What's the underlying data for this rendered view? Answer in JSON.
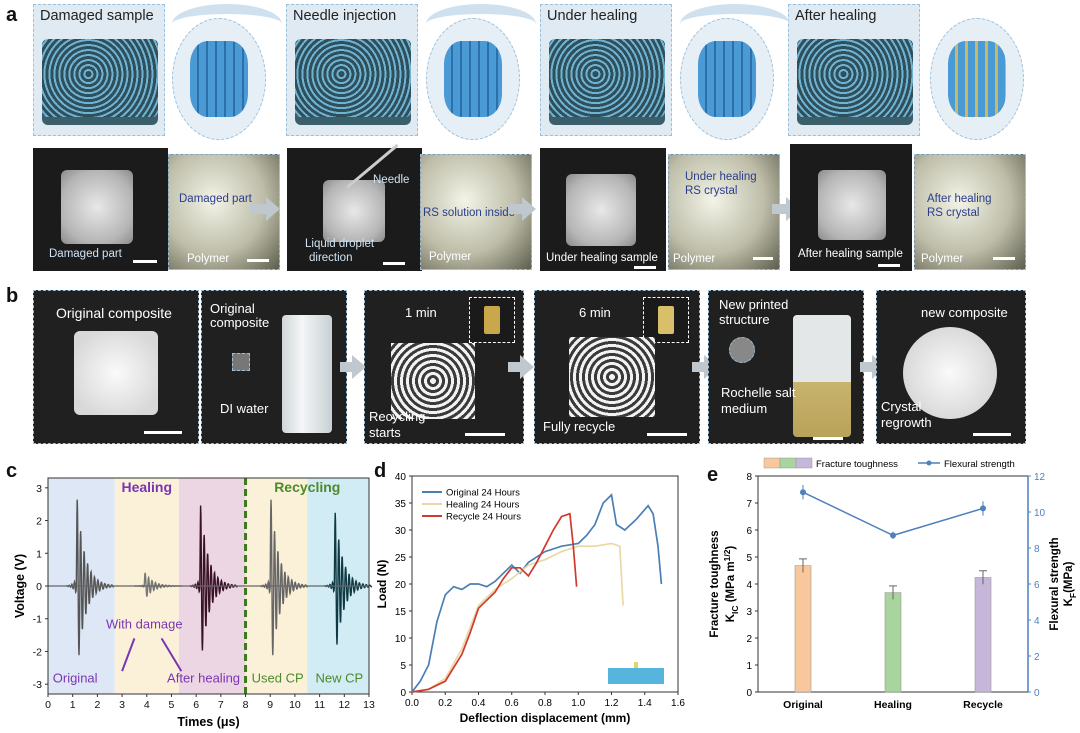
{
  "panel_labels": {
    "a": "a",
    "b": "b",
    "c": "c",
    "d": "d",
    "e": "e"
  },
  "panel_a": {
    "stages": [
      "Damaged sample",
      "Needle injection",
      "Under healing",
      "After healing"
    ],
    "photo_labels": {
      "p1_damaged_part": "Damaged part",
      "p2_damaged_part": "Damaged part",
      "p2_polymer": "Polymer",
      "p3_needle": "Needle",
      "p3_liquid": "Liquid droplet",
      "p3_direction": "direction",
      "p4_rs_inside": "RS solution inside",
      "p4_polymer": "Polymer",
      "p5_under_sample": "Under healing sample",
      "p6_under_healing": "Under healing",
      "p6_rs_crystal": "RS crystal",
      "p6_polymer": "Polymer",
      "p7_after_sample": "After healing sample",
      "p8_after_healing": "After healing",
      "p8_rs_crystal": "RS crystal",
      "p8_polymer": "Polymer"
    }
  },
  "panel_b": {
    "original_composite": "Original composite",
    "original": "Original",
    "composite": "composite",
    "di_water": "DI water",
    "t1": "1 min",
    "recycling": "Recycling",
    "starts": "starts",
    "t6": "6 min",
    "fully_recycle": "Fully recycle",
    "new_printed": "New printed",
    "structure": "structure",
    "rochelle": "Rochelle salt",
    "medium": "medium",
    "new_composite": "new composite",
    "crystal": "Crystal",
    "regrowth": "regrowth"
  },
  "panel_c": {
    "healing": "Healing",
    "recycling": "Recycling",
    "with_damage": "With damage",
    "original": "Original",
    "after_healing": "After healing",
    "used_cp": "Used CP",
    "new_cp": "New CP",
    "colors": {
      "healing": "#7a35b5",
      "recycling": "#4c8a2b"
    }
  },
  "chart_data": [
    {
      "type": "line",
      "title": "",
      "xlabel": "Times (μs)",
      "ylabel": "Voltage (V)",
      "xlim": [
        0,
        13
      ],
      "ylim": [
        -3.3,
        3.3
      ],
      "xticks": [
        "0",
        "1",
        "2",
        "3",
        "4",
        "5",
        "6",
        "7",
        "8",
        "9",
        "10",
        "11",
        "12",
        "13"
      ],
      "yticks": [
        "-3",
        "-2",
        "-1",
        "0",
        "1",
        "2",
        "3"
      ],
      "regions": [
        {
          "name": "Original",
          "x0": 0,
          "x1": 2.7,
          "color": "#dde7f6"
        },
        {
          "name": "With damage",
          "x0": 2.7,
          "x1": 5.3,
          "color": "#fbf1d9"
        },
        {
          "name": "After healing",
          "x0": 5.3,
          "x1": 8,
          "color": "#ecd6e4"
        },
        {
          "name": "Used CP",
          "x0": 8,
          "x1": 10.5,
          "color": "#fbf1d9"
        },
        {
          "name": "New CP",
          "x0": 10.5,
          "x1": 13,
          "color": "#d2ecf6"
        }
      ],
      "series": [
        {
          "name": "Original",
          "center": 1.15,
          "amp": 2.95,
          "color": "#555555"
        },
        {
          "name": "With damage",
          "center": 3.9,
          "amp": 0.45,
          "color": "#777777"
        },
        {
          "name": "After healing",
          "center": 6.15,
          "amp": 2.75,
          "color": "#3a1228"
        },
        {
          "name": "Used CP",
          "center": 9.0,
          "amp": 2.95,
          "color": "#666666"
        },
        {
          "name": "New CP",
          "center": 11.6,
          "amp": 2.5,
          "color": "#0e3a44"
        }
      ]
    },
    {
      "type": "line",
      "title": "",
      "xlabel": "Deflection displacement (mm)",
      "ylabel": "Load (N)",
      "xlim": [
        0,
        1.6
      ],
      "ylim": [
        0,
        40
      ],
      "xticks": [
        "0.0",
        "0.2",
        "0.4",
        "0.6",
        "0.8",
        "1.0",
        "1.2",
        "1.4",
        "1.6"
      ],
      "yticks": [
        "0",
        "5",
        "10",
        "15",
        "20",
        "25",
        "30",
        "35",
        "40"
      ],
      "series": [
        {
          "name": "Original 24 Hours",
          "color": "#4a7fb5",
          "x": [
            0,
            0.05,
            0.1,
            0.15,
            0.2,
            0.25,
            0.3,
            0.35,
            0.4,
            0.45,
            0.5,
            0.55,
            0.6,
            0.65,
            0.7,
            0.8,
            0.9,
            1.0,
            1.05,
            1.1,
            1.15,
            1.2,
            1.23,
            1.28,
            1.35,
            1.42,
            1.45,
            1.48,
            1.5
          ],
          "y": [
            0,
            2,
            5,
            13,
            18,
            19.5,
            19,
            20,
            20,
            19.5,
            20.5,
            22,
            23.5,
            22,
            24,
            26,
            27,
            27.5,
            29,
            31,
            35,
            36.5,
            31,
            30,
            32,
            34.5,
            33,
            27,
            20
          ]
        },
        {
          "name": "Healing 24 Hours",
          "color": "#e9d8a6",
          "x": [
            0,
            0.1,
            0.2,
            0.3,
            0.35,
            0.4,
            0.45,
            0.5,
            0.6,
            0.7,
            0.8,
            0.9,
            1.0,
            1.1,
            1.2,
            1.25,
            1.27
          ],
          "y": [
            0,
            0.5,
            2.5,
            8,
            12,
            16,
            17.5,
            19,
            21,
            23.5,
            24.5,
            26,
            27,
            27,
            27.5,
            27,
            16
          ]
        },
        {
          "name": "Recycle 24 Hours",
          "color": "#d03a2e",
          "x": [
            0,
            0.1,
            0.2,
            0.3,
            0.35,
            0.4,
            0.45,
            0.5,
            0.55,
            0.6,
            0.65,
            0.7,
            0.75,
            0.8,
            0.85,
            0.9,
            0.95,
            0.97,
            0.99
          ],
          "y": [
            0,
            0.5,
            2,
            7,
            11,
            15.5,
            17,
            18.5,
            21,
            23,
            23,
            21.5,
            24,
            27,
            30,
            32.5,
            33,
            27,
            19.5
          ]
        }
      ]
    },
    {
      "type": "bar",
      "title": "",
      "categories": [
        "Original",
        "Healing",
        "Recycle"
      ],
      "series": [
        {
          "name": "Fracture toughness",
          "axis": "left",
          "values": [
            4.68,
            3.68,
            4.24
          ],
          "errors": [
            0.25,
            0.25,
            0.25
          ],
          "colors": [
            "#f8c79c",
            "#a8d59d",
            "#c5b6da"
          ]
        },
        {
          "name": "Flexural strength",
          "axis": "right",
          "type": "line",
          "values": [
            11.1,
            8.7,
            10.2
          ],
          "errors": [
            0.4,
            0.2,
            0.4
          ],
          "color": "#4f81bd"
        }
      ],
      "ylabel_left": "Fracture toughness",
      "ylabel_left2": "K",
      "ylabel_left_sub": "IC",
      "ylabel_left_unit": " (MPa m",
      "ylabel_left_sup": "1/2",
      "ylabel_left_end": ")",
      "ylabel_right": "Flexural strength",
      "ylabel_right2": "K",
      "ylabel_right_sub": "F",
      "ylabel_right_unit": "(MPa)",
      "ylim_left": [
        0,
        8
      ],
      "ylim_right": [
        0,
        12
      ],
      "yticks_left": [
        "0",
        "1",
        "2",
        "3",
        "4",
        "5",
        "6",
        "7",
        "8"
      ],
      "yticks_right": [
        "0",
        "2",
        "4",
        "6",
        "8",
        "10",
        "12"
      ],
      "legend": {
        "bars": "Fracture toughness",
        "line": "Flexural strength"
      }
    }
  ]
}
